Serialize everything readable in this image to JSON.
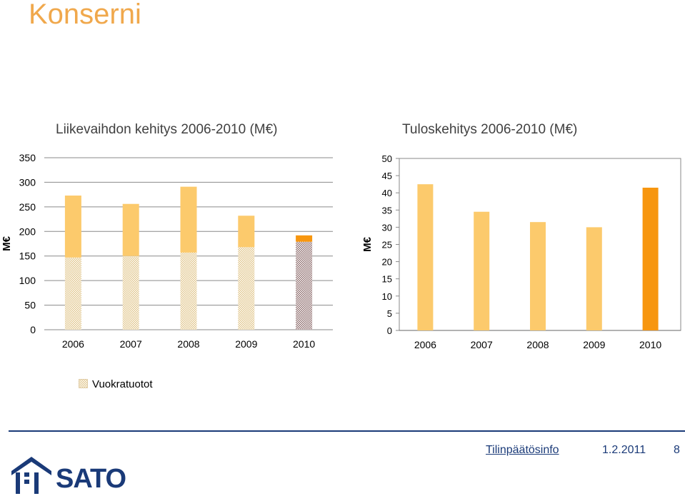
{
  "page": {
    "title": "Konserni"
  },
  "colors": {
    "accent": "#f0a84c",
    "bar_light": "#fcca6c",
    "bar_highlight": "#f7960f",
    "pattern_light": "#e8d49a",
    "pattern_dark": "#8c6b6b",
    "brand": "#1a3a78"
  },
  "chart_data": [
    {
      "type": "bar",
      "title": "Liikevaihdon kehitys 2006-2010 (M€)",
      "ylabel": "M€",
      "xlabel": "",
      "categories": [
        "2006",
        "2007",
        "2008",
        "2009",
        "2010"
      ],
      "ylim": [
        0,
        350
      ],
      "yticks": [
        0,
        50,
        100,
        150,
        200,
        250,
        300,
        350
      ],
      "stacked": true,
      "series": [
        {
          "name": "Vuokratuotot",
          "values": [
            147,
            150,
            157,
            168,
            179
          ],
          "pattern": "checker"
        },
        {
          "values": [
            126,
            106,
            134,
            64,
            13
          ]
        }
      ],
      "highlight_category": "2010",
      "legend": "bottom-left"
    },
    {
      "type": "bar",
      "title": "Tuloskehitys 2006-2010 (M€)",
      "ylabel": "M€",
      "xlabel": "",
      "categories": [
        "2006",
        "2007",
        "2008",
        "2009",
        "2010"
      ],
      "ylim": [
        0,
        50
      ],
      "yticks": [
        0,
        5,
        10,
        15,
        20,
        25,
        30,
        35,
        40,
        45,
        50
      ],
      "values": [
        42.5,
        34.5,
        31.5,
        30.0,
        41.5
      ],
      "highlight_category": "2010"
    }
  ],
  "legend": {
    "label": "Vuokratuotot"
  },
  "footer": {
    "logo_text": "SATO",
    "doc_title": "Tilinpäätösinfo",
    "date": "1.2.2011",
    "page_number": "8"
  }
}
